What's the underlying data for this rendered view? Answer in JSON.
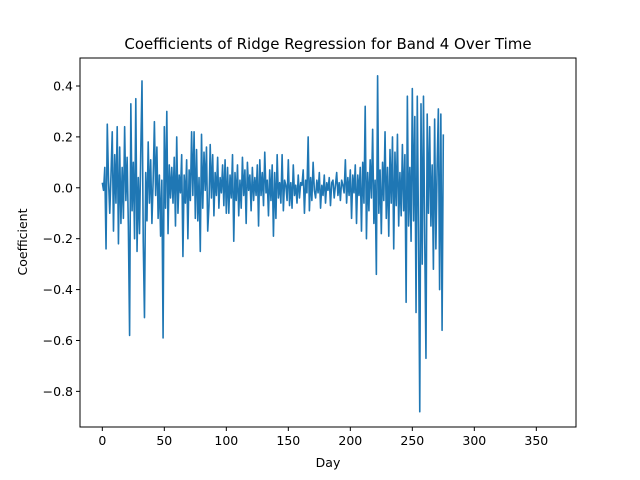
{
  "chart_data": {
    "type": "line",
    "title": "Coefficients of Ridge Regression for Band 4 Over Time",
    "xlabel": "Day",
    "ylabel": "Coefficient",
    "xlim": [
      -18,
      382
    ],
    "ylim": [
      -0.94,
      0.51
    ],
    "xticks": [
      0,
      50,
      100,
      150,
      200,
      250,
      300,
      350
    ],
    "yticks": [
      -0.8,
      -0.6,
      -0.4,
      -0.2,
      0.0,
      0.2,
      0.4
    ],
    "xtick_labels": [
      "0",
      "50",
      "100",
      "150",
      "200",
      "250",
      "300",
      "350"
    ],
    "ytick_labels": [
      "−0.8",
      "−0.6",
      "−0.4",
      "−0.2",
      "0.0",
      "0.2",
      "0.4"
    ],
    "grid": false,
    "series": [
      {
        "color": "#1f77b4",
        "x_start": 0,
        "x_step": 1,
        "values": [
          0.02,
          -0.01,
          0.08,
          -0.24,
          0.25,
          0.03,
          -0.1,
          0.05,
          0.22,
          -0.17,
          0.13,
          -0.06,
          0.24,
          -0.22,
          0.16,
          -0.14,
          0.08,
          -0.12,
          0.24,
          -0.05,
          0.12,
          -0.15,
          -0.58,
          0.33,
          -0.09,
          0.1,
          -0.2,
          0.35,
          -0.25,
          0.04,
          -0.18,
          0.14,
          0.42,
          -0.21,
          -0.51,
          0.06,
          -0.13,
          0.18,
          -0.06,
          0.11,
          -0.14,
          0.03,
          0.26,
          -0.03,
          0.16,
          -0.12,
          0.05,
          -0.19,
          0.03,
          -0.59,
          0.24,
          -0.08,
          0.3,
          -0.18,
          0.09,
          -0.04,
          0.08,
          -0.06,
          0.12,
          -0.15,
          0.2,
          -0.1,
          0.05,
          -0.02,
          0.13,
          -0.27,
          0.05,
          -0.06,
          0.11,
          -0.2,
          0.07,
          -0.05,
          0.22,
          -0.03,
          0.22,
          -0.12,
          0.15,
          -0.13,
          0.04,
          -0.25,
          0.21,
          -0.08,
          0.14,
          -0.01,
          0.16,
          -0.17,
          -0.07,
          0.17,
          -0.04,
          0.13,
          -0.11,
          0.06,
          -0.03,
          0.12,
          -0.08,
          0.04,
          -0.02,
          0.09,
          -0.07,
          0.11,
          -0.1,
          0.08,
          -0.1,
          0.05,
          -0.04,
          0.13,
          -0.21,
          0.06,
          -0.05,
          0.09,
          -0.11,
          0.03,
          -0.08,
          0.12,
          -0.03,
          0.07,
          -0.14,
          0.1,
          -0.01,
          0.05,
          -0.09,
          0.08,
          -0.05,
          0.04,
          -0.03,
          0.09,
          -0.15,
          0.11,
          -0.03,
          0.06,
          -0.07,
          0.14,
          -0.02,
          0.03,
          -0.11,
          0.07,
          -0.05,
          0.09,
          -0.19,
          0.06,
          -0.12,
          0.13,
          -0.04,
          0.02,
          -0.06,
          0.13,
          -0.09,
          0.03,
          0.01,
          -0.05,
          0.11,
          -0.07,
          0.02,
          -0.08,
          0.09,
          -0.03,
          0.01,
          -0.06,
          0.05,
          -0.04,
          0.02,
          0.01,
          0.07,
          -0.1,
          0.03,
          -0.02,
          0.2,
          -0.09,
          0.04,
          -0.05,
          0.1,
          -0.01,
          -0.04,
          0.03,
          -0.02,
          0.06,
          -0.08,
          0.01,
          -0.03,
          0.05,
          -0.06,
          0.02,
          -0.01,
          0.04,
          -0.07,
          0.02,
          0.03,
          -0.04,
          0.01,
          0.06,
          -0.03,
          0.02,
          -0.05,
          0.03,
          0.01,
          -0.02,
          0.11,
          -0.06,
          0.04,
          -0.03,
          0.07,
          -0.12,
          0.05,
          -0.02,
          0.09,
          -0.14,
          0.05,
          -0.03,
          0.08,
          -0.17,
          0.1,
          -0.06,
          0.32,
          -0.2,
          0.06,
          -0.09,
          0.11,
          -0.04,
          0.23,
          -0.14,
          0.03,
          -0.34,
          0.44,
          -0.1,
          0.07,
          -0.18,
          0.1,
          -0.05,
          0.22,
          -0.12,
          0.08,
          -0.19,
          0.15,
          -0.06,
          0.2,
          -0.24,
          0.14,
          -0.07,
          0.21,
          -0.15,
          0.06,
          -0.11,
          0.17,
          -0.09,
          0.13,
          -0.45,
          0.36,
          -0.15,
          0.08,
          -0.21,
          0.39,
          -0.13,
          0.28,
          -0.49,
          0.36,
          -0.18,
          -0.88,
          0.33,
          -0.3,
          0.36,
          -0.2,
          -0.67,
          0.29,
          -0.1,
          0.24,
          -0.15,
          0.09,
          -0.32,
          0.27,
          -0.24,
          0.08,
          0.31,
          -0.4,
          0.29,
          -0.56,
          0.21
        ]
      }
    ]
  }
}
